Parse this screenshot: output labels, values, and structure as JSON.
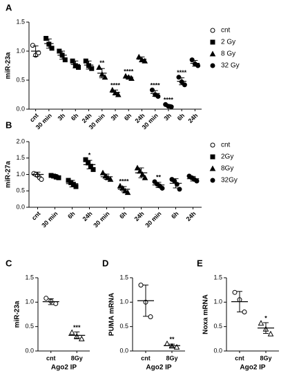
{
  "chart_data": [
    {
      "type": "dot",
      "panel": "A",
      "ylabel": "miR-23a",
      "categories": [
        "cnt",
        "30 min",
        "3h",
        "6h",
        "24h",
        "30 min",
        "3h",
        "6h",
        "24h",
        "30 min",
        "3h",
        "6h",
        "24h"
      ],
      "ylim": [
        0,
        1.5
      ],
      "yticks": [
        {
          "value": 0,
          "label": "0.0"
        },
        0.5,
        {
          "value": 1,
          "label": "1.0"
        },
        1.5
      ],
      "legend": "right",
      "color": "#000000",
      "groups": [
        {
          "name": "cnt",
          "marker": "open-circle",
          "points": [
            [
              1.1,
              0.93,
              0.97
            ]
          ],
          "mean": [
            1.0
          ],
          "sd": [
            0.09
          ],
          "stars": [
            null
          ]
        },
        {
          "name": "2 Gy",
          "marker": "square",
          "points": [
            [
              1.22,
              1.12,
              1.05
            ],
            [
              1.0,
              0.93,
              0.85
            ],
            [
              0.83,
              0.75,
              0.72
            ],
            [
              0.83,
              0.75,
              0.7
            ]
          ],
          "mean": [
            1.13,
            0.93,
            0.77,
            0.76
          ],
          "sd": [
            0.08,
            0.07,
            0.06,
            0.07
          ],
          "stars": [
            null,
            null,
            null,
            null
          ]
        },
        {
          "name": "8 Gy",
          "marker": "triangle",
          "points": [
            [
              0.72,
              0.6,
              0.55
            ],
            [
              0.33,
              0.28,
              0.25
            ],
            [
              0.57,
              0.55,
              0.53
            ],
            [
              0.9,
              0.85,
              0.83
            ]
          ],
          "mean": [
            0.62,
            0.29,
            0.55,
            0.86
          ],
          "sd": [
            0.08,
            0.04,
            0.02,
            0.04
          ],
          "stars": [
            "**",
            "****",
            "****",
            null
          ]
        },
        {
          "name": "32 Gy",
          "marker": "circle",
          "points": [
            [
              0.33,
              0.25,
              0.22
            ],
            [
              0.08,
              0.05,
              0.04
            ],
            [
              0.55,
              0.47,
              0.42
            ],
            [
              0.85,
              0.78,
              0.75
            ]
          ],
          "mean": [
            0.27,
            0.06,
            0.48,
            0.79
          ],
          "sd": [
            0.05,
            0.02,
            0.06,
            0.05
          ],
          "stars": [
            "****",
            "****",
            "****",
            null
          ]
        }
      ]
    },
    {
      "type": "dot",
      "panel": "B",
      "ylabel": "miR-27a",
      "categories": [
        "cnt",
        "30 min",
        "6h",
        "24h",
        "30 min",
        "6h",
        "24h",
        "30 min",
        "6h",
        "24h"
      ],
      "ylim": [
        0,
        2
      ],
      "yticks": [
        {
          "value": 0,
          "label": "0.0"
        },
        0.5,
        {
          "value": 1,
          "label": "1.0"
        },
        1.5,
        {
          "value": 2,
          "label": "2.0"
        }
      ],
      "legend": "right",
      "color": "#000000",
      "groups": [
        {
          "name": "cnt",
          "marker": "open-circle",
          "points": [
            [
              1.03,
              1.0,
              0.97,
              0.9,
              0.85
            ]
          ],
          "mean": [
            1.0
          ],
          "sd": [
            0.07
          ],
          "stars": [
            null
          ]
        },
        {
          "name": "2Gy",
          "marker": "square",
          "points": [
            [
              0.97,
              0.95,
              0.92,
              0.9
            ],
            [
              0.82,
              0.75,
              0.7,
              0.63
            ],
            [
              1.45,
              1.35,
              1.25,
              1.15
            ]
          ],
          "mean": [
            0.95,
            0.72,
            1.3
          ],
          "sd": [
            0.05,
            0.1,
            0.13
          ],
          "stars": [
            null,
            null,
            "*"
          ]
        },
        {
          "name": "8Gy",
          "marker": "triangle",
          "points": [
            [
              1.05,
              0.95,
              0.9,
              0.85
            ],
            [
              0.65,
              0.58,
              0.5,
              0.45
            ],
            [
              1.2,
              1.1,
              1.0,
              0.9
            ]
          ],
          "mean": [
            0.93,
            0.55,
            1.05
          ],
          "sd": [
            0.08,
            0.08,
            0.15
          ],
          "stars": [
            null,
            "****",
            null
          ]
        },
        {
          "name": "32Gy",
          "marker": "circle",
          "points": [
            [
              0.78,
              0.7,
              0.65,
              0.58
            ],
            [
              0.85,
              0.8,
              0.7,
              0.55
            ],
            [
              0.95,
              0.9,
              0.85,
              0.8
            ]
          ],
          "mean": [
            0.68,
            0.73,
            0.87
          ],
          "sd": [
            0.08,
            0.14,
            0.07
          ],
          "stars": [
            "**",
            null,
            null
          ]
        }
      ]
    },
    {
      "type": "dot",
      "panel": "C",
      "ylabel": "miR-23a",
      "xlabel": "Ago2 IP",
      "categories": [
        "cnt",
        "8Gy"
      ],
      "ylim": [
        0,
        1.5
      ],
      "yticks": [
        {
          "value": 0,
          "label": "0.0"
        },
        0.5,
        {
          "value": 1,
          "label": "1.0"
        },
        1.5
      ],
      "color": "#000000",
      "groups": [
        {
          "marker": "open-circle",
          "points": [
            [
              1.08,
              1.02,
              0.97
            ]
          ],
          "mean": [
            1.01
          ],
          "sd": [
            0.06
          ],
          "stars": [
            null
          ]
        },
        {
          "marker": "open-triangle",
          "points": [
            [
              0.38,
              0.3,
              0.25
            ]
          ],
          "mean": [
            0.32
          ],
          "sd": [
            0.07
          ],
          "stars": [
            "***"
          ]
        }
      ]
    },
    {
      "type": "dot",
      "panel": "D",
      "ylabel": "PUMA mRNA",
      "xlabel": "Ago2 IP",
      "categories": [
        "cnt",
        "8Gy"
      ],
      "ylim": [
        0,
        1.5
      ],
      "yticks": [
        {
          "value": 0,
          "label": "0.0"
        },
        0.5,
        {
          "value": 1,
          "label": "1.0"
        },
        1.5
      ],
      "color": "#000000",
      "groups": [
        {
          "marker": "open-circle",
          "points": [
            [
              1.35,
              1.0,
              0.7
            ]
          ],
          "mean": [
            1.03
          ],
          "sd": [
            0.32
          ],
          "stars": [
            null
          ]
        },
        {
          "marker": "open-triangle",
          "points": [
            [
              0.15,
              0.1,
              0.08
            ]
          ],
          "mean": [
            0.11
          ],
          "sd": [
            0.03
          ],
          "stars": [
            "**"
          ]
        }
      ]
    },
    {
      "type": "dot",
      "panel": "E",
      "ylabel": "Noxa mRNA",
      "xlabel": "Ago2 IP",
      "categories": [
        "cnt",
        "8Gy"
      ],
      "ylim": [
        0,
        1.5
      ],
      "yticks": [
        {
          "value": 0,
          "label": "0.0"
        },
        0.5,
        {
          "value": 1,
          "label": "1.0"
        },
        1.5
      ],
      "color": "#000000",
      "groups": [
        {
          "marker": "open-circle",
          "points": [
            [
              1.2,
              1.05,
              0.8
            ]
          ],
          "mean": [
            1.01
          ],
          "sd": [
            0.21
          ],
          "stars": [
            null
          ]
        },
        {
          "marker": "open-triangle",
          "points": [
            [
              0.57,
              0.45,
              0.35
            ]
          ],
          "mean": [
            0.47
          ],
          "sd": [
            0.11
          ],
          "stars": [
            "*"
          ]
        }
      ]
    }
  ]
}
